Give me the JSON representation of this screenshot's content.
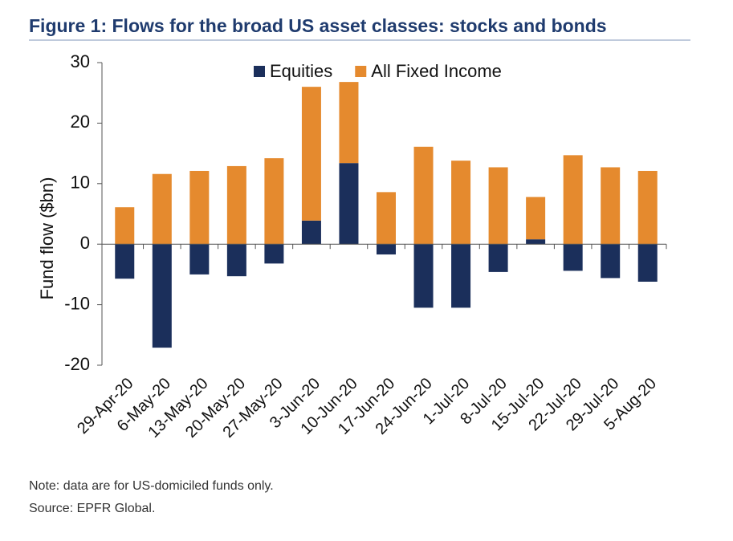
{
  "chart_data": {
    "type": "stacked_bar",
    "title": "Figure 1: Flows for the broad US asset classes: stocks and bonds",
    "y_label": "Fund flow ($bn)",
    "categories": [
      "29-Apr-20",
      "6-May-20",
      "13-May-20",
      "20-May-20",
      "27-May-20",
      "3-Jun-20",
      "10-Jun-20",
      "17-Jun-20",
      "24-Jun-20",
      "1-Jul-20",
      "8-Jul-20",
      "15-Jul-20",
      "22-Jul-20",
      "29-Jul-20",
      "5-Aug-20"
    ],
    "series": [
      {
        "name": "Equities",
        "color": "#1b2f5b",
        "values": [
          -5.7,
          -17.1,
          -5.0,
          -5.3,
          -3.2,
          3.9,
          13.4,
          -1.7,
          -10.5,
          -10.5,
          -4.6,
          0.8,
          -4.4,
          -5.6,
          -6.2
        ]
      },
      {
        "name": "All Fixed Income",
        "color": "#e58a2e",
        "values": [
          6.1,
          11.6,
          12.1,
          12.9,
          14.2,
          22.1,
          13.4,
          8.6,
          16.1,
          13.8,
          12.7,
          7.0,
          14.7,
          12.7,
          12.1
        ]
      }
    ],
    "ylim": [
      -20,
      30
    ],
    "yticks": [
      -20,
      -10,
      0,
      10,
      20,
      30
    ],
    "legend": "top",
    "notes": [
      "Note: data are for US-domiciled funds only.",
      "Source: EPFR Global."
    ]
  }
}
